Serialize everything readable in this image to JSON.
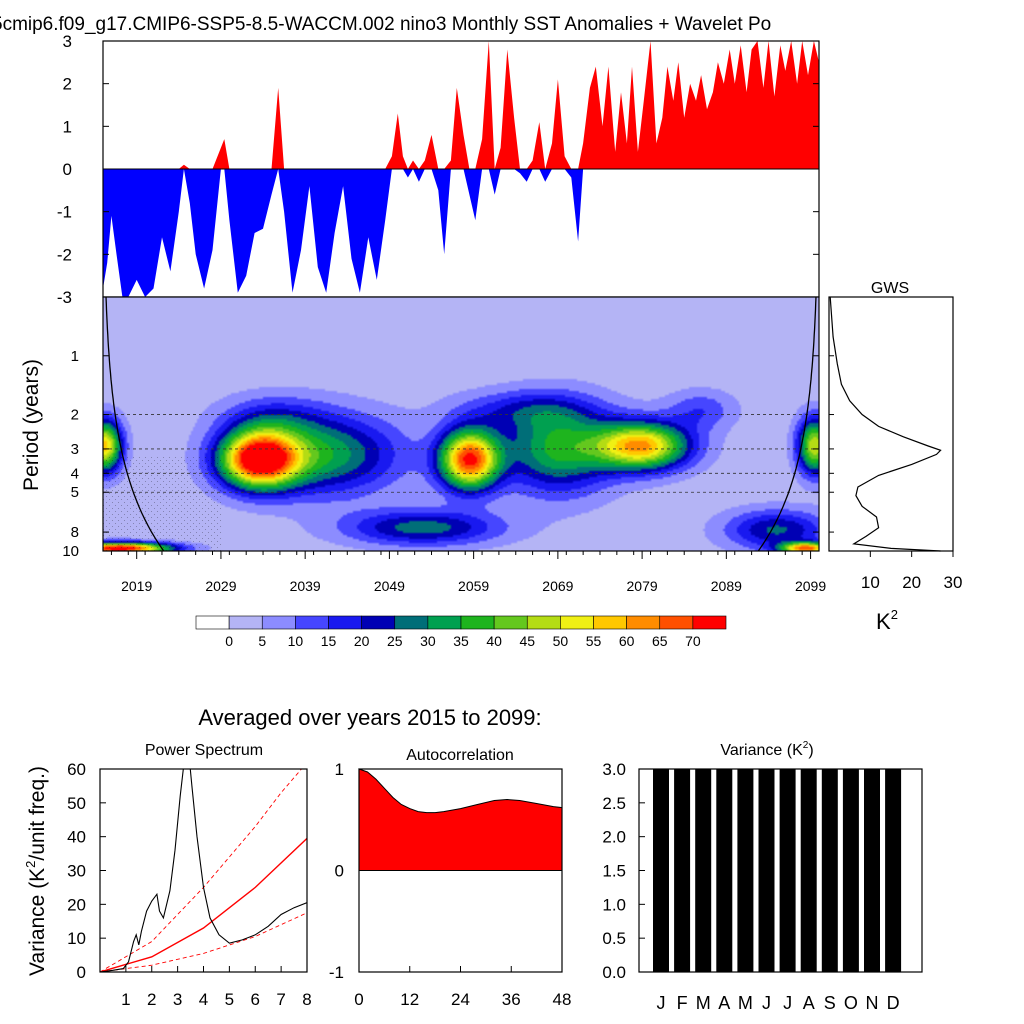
{
  "title": "5cmip6.f09_g17.CMIP6-SSP5-8.5-WACCM.002 nino3 Monthly SST Anomalies + Wavelet Po",
  "chart_data": [
    {
      "id": "anomaly",
      "type": "area",
      "title": "Monthly SST Anomalies",
      "ylim": [
        -3,
        3
      ],
      "yticks": [
        3,
        2,
        1,
        0,
        -1,
        -2,
        -3
      ],
      "xlim": [
        2015,
        2100
      ],
      "positive_color": "#ff0000",
      "negative_color": "#0000ff",
      "series": [
        {
          "x": 2015.0,
          "y": -2.8
        },
        {
          "x": 2015.5,
          "y": -2.2
        },
        {
          "x": 2016.0,
          "y": -1.1
        },
        {
          "x": 2016.6,
          "y": -2.0
        },
        {
          "x": 2017.3,
          "y": -3.0
        },
        {
          "x": 2018.0,
          "y": -3.0
        },
        {
          "x": 2019.0,
          "y": -2.6
        },
        {
          "x": 2020.0,
          "y": -3.0
        },
        {
          "x": 2021.0,
          "y": -2.8
        },
        {
          "x": 2022.0,
          "y": -1.6
        },
        {
          "x": 2023.0,
          "y": -2.4
        },
        {
          "x": 2024.0,
          "y": -1.0
        },
        {
          "x": 2024.6,
          "y": 0.1
        },
        {
          "x": 2025.3,
          "y": -0.8
        },
        {
          "x": 2026.0,
          "y": -2.0
        },
        {
          "x": 2027.0,
          "y": -2.8
        },
        {
          "x": 2028.0,
          "y": -1.9
        },
        {
          "x": 2029.0,
          "y": 0.5
        },
        {
          "x": 2029.4,
          "y": 0.7
        },
        {
          "x": 2030.0,
          "y": -1.2
        },
        {
          "x": 2031.0,
          "y": -2.9
        },
        {
          "x": 2032.0,
          "y": -2.5
        },
        {
          "x": 2033.0,
          "y": -1.5
        },
        {
          "x": 2034.0,
          "y": -1.4
        },
        {
          "x": 2035.0,
          "y": -0.6
        },
        {
          "x": 2035.8,
          "y": 1.9
        },
        {
          "x": 2036.5,
          "y": -1.0
        },
        {
          "x": 2037.5,
          "y": -2.9
        },
        {
          "x": 2038.5,
          "y": -1.9
        },
        {
          "x": 2039.5,
          "y": -0.4
        },
        {
          "x": 2040.5,
          "y": -2.3
        },
        {
          "x": 2041.5,
          "y": -2.9
        },
        {
          "x": 2042.5,
          "y": -1.5
        },
        {
          "x": 2043.5,
          "y": -0.4
        },
        {
          "x": 2044.5,
          "y": -2.1
        },
        {
          "x": 2045.5,
          "y": -2.9
        },
        {
          "x": 2046.5,
          "y": -1.6
        },
        {
          "x": 2047.5,
          "y": -2.6
        },
        {
          "x": 2048.5,
          "y": -1.2
        },
        {
          "x": 2049.3,
          "y": 0.3
        },
        {
          "x": 2050.0,
          "y": 1.3
        },
        {
          "x": 2050.6,
          "y": 0.3
        },
        {
          "x": 2051.2,
          "y": -0.2
        },
        {
          "x": 2051.8,
          "y": 0.2
        },
        {
          "x": 2052.5,
          "y": -0.3
        },
        {
          "x": 2053.2,
          "y": 0.2
        },
        {
          "x": 2054.0,
          "y": 0.8
        },
        {
          "x": 2054.8,
          "y": -0.5
        },
        {
          "x": 2055.5,
          "y": -2.0
        },
        {
          "x": 2056.3,
          "y": 0.2
        },
        {
          "x": 2057.0,
          "y": 1.9
        },
        {
          "x": 2057.8,
          "y": 0.8
        },
        {
          "x": 2058.5,
          "y": -0.6
        },
        {
          "x": 2059.2,
          "y": -1.2
        },
        {
          "x": 2060.0,
          "y": 0.7
        },
        {
          "x": 2060.8,
          "y": 3.0
        },
        {
          "x": 2061.5,
          "y": -0.6
        },
        {
          "x": 2062.2,
          "y": 0.5
        },
        {
          "x": 2063.0,
          "y": 2.8
        },
        {
          "x": 2063.8,
          "y": 1.2
        },
        {
          "x": 2064.5,
          "y": -0.1
        },
        {
          "x": 2065.3,
          "y": -0.3
        },
        {
          "x": 2066.0,
          "y": 0.2
        },
        {
          "x": 2066.8,
          "y": 1.1
        },
        {
          "x": 2067.5,
          "y": -0.3
        },
        {
          "x": 2068.3,
          "y": 0.6
        },
        {
          "x": 2069.0,
          "y": 2.1
        },
        {
          "x": 2069.8,
          "y": 0.3
        },
        {
          "x": 2070.6,
          "y": -0.2
        },
        {
          "x": 2071.4,
          "y": -1.7
        },
        {
          "x": 2072.0,
          "y": 0.6
        },
        {
          "x": 2072.8,
          "y": 1.9
        },
        {
          "x": 2073.5,
          "y": 2.4
        },
        {
          "x": 2074.3,
          "y": 1.0
        },
        {
          "x": 2075.0,
          "y": 2.4
        },
        {
          "x": 2075.8,
          "y": 0.4
        },
        {
          "x": 2076.5,
          "y": 1.8
        },
        {
          "x": 2077.2,
          "y": 0.6
        },
        {
          "x": 2077.8,
          "y": 2.4
        },
        {
          "x": 2078.5,
          "y": 0.4
        },
        {
          "x": 2079.2,
          "y": 1.6
        },
        {
          "x": 2080.0,
          "y": 3.0
        },
        {
          "x": 2080.7,
          "y": 0.6
        },
        {
          "x": 2081.4,
          "y": 1.2
        },
        {
          "x": 2082.0,
          "y": 2.4
        },
        {
          "x": 2082.7,
          "y": 1.6
        },
        {
          "x": 2083.3,
          "y": 2.5
        },
        {
          "x": 2084.0,
          "y": 1.2
        },
        {
          "x": 2084.7,
          "y": 2.0
        },
        {
          "x": 2085.4,
          "y": 1.6
        },
        {
          "x": 2086.0,
          "y": 2.2
        },
        {
          "x": 2086.7,
          "y": 1.4
        },
        {
          "x": 2087.4,
          "y": 1.8
        },
        {
          "x": 2088.0,
          "y": 2.5
        },
        {
          "x": 2088.7,
          "y": 2.0
        },
        {
          "x": 2089.4,
          "y": 2.8
        },
        {
          "x": 2090.0,
          "y": 2.0
        },
        {
          "x": 2090.7,
          "y": 2.9
        },
        {
          "x": 2091.4,
          "y": 1.8
        },
        {
          "x": 2092.0,
          "y": 2.8
        },
        {
          "x": 2092.7,
          "y": 3.0
        },
        {
          "x": 2093.4,
          "y": 1.9
        },
        {
          "x": 2094.0,
          "y": 3.0
        },
        {
          "x": 2094.7,
          "y": 1.7
        },
        {
          "x": 2095.4,
          "y": 2.9
        },
        {
          "x": 2096.0,
          "y": 2.3
        },
        {
          "x": 2096.7,
          "y": 3.0
        },
        {
          "x": 2097.4,
          "y": 2.0
        },
        {
          "x": 2098.0,
          "y": 3.0
        },
        {
          "x": 2098.7,
          "y": 2.2
        },
        {
          "x": 2099.4,
          "y": 3.0
        },
        {
          "x": 2100.0,
          "y": 2.5
        }
      ]
    },
    {
      "id": "wavelet",
      "type": "heatmap",
      "ylabel": "Period (years)",
      "yticks": [
        1,
        2,
        3,
        4,
        5,
        8,
        10
      ],
      "ylim_period": [
        0.5,
        10
      ],
      "xticks": [
        "2019",
        "2029",
        "2039",
        "2049",
        "2059",
        "2069",
        "2079",
        "2089",
        "2099"
      ],
      "xtick_years": [
        2019,
        2029,
        2039,
        2049,
        2059,
        2069,
        2079,
        2089,
        2099
      ],
      "xlim": [
        2015,
        2100
      ],
      "dashed_periods": [
        2,
        3,
        4,
        5
      ],
      "blobs": [
        {
          "year": 2033.5,
          "period": 3.4,
          "peak": 72,
          "wy": 4.5,
          "wlog": 0.14
        },
        {
          "year": 2058.5,
          "period": 3.4,
          "peak": 68,
          "wy": 3.5,
          "wlog": 0.15
        },
        {
          "year": 2079.0,
          "period": 2.9,
          "peak": 58,
          "wy": 5.5,
          "wlog": 0.12
        },
        {
          "year": 2015.2,
          "period": 2.9,
          "peak": 55,
          "wy": 2.0,
          "wlog": 0.13
        },
        {
          "year": 2099.5,
          "period": 2.9,
          "peak": 48,
          "wy": 2.0,
          "wlog": 0.14
        },
        {
          "year": 2041.0,
          "period": 3.2,
          "peak": 32,
          "wy": 9.0,
          "wlog": 0.2
        },
        {
          "year": 2069.0,
          "period": 3.0,
          "peak": 34,
          "wy": 6.5,
          "wlog": 0.22
        },
        {
          "year": 2053.0,
          "period": 7.6,
          "peak": 26,
          "wy": 9.0,
          "wlog": 0.09
        },
        {
          "year": 2095.0,
          "period": 7.8,
          "peak": 24,
          "wy": 6.0,
          "wlog": 0.1
        },
        {
          "year": 2017.0,
          "period": 9.7,
          "peak": 75,
          "wy": 6.0,
          "wlog": 0.03
        },
        {
          "year": 2098.5,
          "period": 9.7,
          "peak": 60,
          "wy": 3.0,
          "wlog": 0.03
        },
        {
          "year": 2035.0,
          "period": 2.1,
          "peak": 12,
          "wy": 6.0,
          "wlog": 0.12
        },
        {
          "year": 2065.0,
          "period": 1.9,
          "peak": 14,
          "wy": 8.0,
          "wlog": 0.1
        },
        {
          "year": 2086.0,
          "period": 1.9,
          "peak": 12,
          "wy": 4.0,
          "wlog": 0.1
        }
      ]
    },
    {
      "id": "gws",
      "type": "line",
      "title": "GWS",
      "xlabel": "K",
      "xlabel_sup": "2",
      "xticks": [
        "10",
        "20",
        "30"
      ],
      "xtick_values": [
        10,
        20,
        30
      ],
      "xlim": [
        0,
        30
      ],
      "points": [
        [
          0.3,
          0.5
        ],
        [
          1,
          0.8
        ],
        [
          2,
          1.1
        ],
        [
          3,
          1.4
        ],
        [
          5,
          1.7
        ],
        [
          8,
          2.0
        ],
        [
          12,
          2.3
        ],
        [
          18,
          2.6
        ],
        [
          24,
          2.9
        ],
        [
          27,
          3.05
        ],
        [
          26,
          3.2
        ],
        [
          20,
          3.6
        ],
        [
          12,
          4.1
        ],
        [
          7,
          4.7
        ],
        [
          6.5,
          5.2
        ],
        [
          8,
          5.9
        ],
        [
          11.5,
          6.7
        ],
        [
          12,
          7.6
        ],
        [
          9,
          8.4
        ],
        [
          6,
          9.2
        ],
        [
          15,
          9.7
        ],
        [
          27,
          10
        ]
      ]
    },
    {
      "id": "colorbar",
      "type": "heatmap",
      "levels": [
        "0",
        "5",
        "10",
        "15",
        "20",
        "25",
        "30",
        "35",
        "40",
        "45",
        "50",
        "55",
        "60",
        "65",
        "70"
      ],
      "level_values": [
        0,
        5,
        10,
        15,
        20,
        25,
        30,
        35,
        40,
        45,
        50,
        55,
        60,
        65,
        70
      ],
      "colors": [
        "#ffffff",
        "#b4b4f5",
        "#8c8cff",
        "#4646ff",
        "#1919f0",
        "#0000b4",
        "#006e78",
        "#00a050",
        "#1eb41e",
        "#64c81e",
        "#b4dc14",
        "#f0f014",
        "#ffc800",
        "#ff8c00",
        "#ff5000",
        "#ff0000"
      ]
    },
    {
      "id": "power",
      "type": "line",
      "title": "Power Spectrum",
      "ylabel": "Variance (K",
      "ylabel_sup": "2",
      "ylabel_tail": "/unit freq.)",
      "xlim": [
        0,
        8
      ],
      "ylim": [
        0,
        60
      ],
      "xticks": [
        "1",
        "2",
        "3",
        "4",
        "5",
        "6",
        "7",
        "8"
      ],
      "xtick_values": [
        1,
        2,
        3,
        4,
        5,
        6,
        7,
        8
      ],
      "yticks": [
        "0",
        "10",
        "20",
        "30",
        "40",
        "50",
        "60"
      ],
      "ytick_values": [
        0,
        10,
        20,
        30,
        40,
        50,
        60
      ],
      "spectrum": [
        [
          0,
          0
        ],
        [
          0.5,
          0.5
        ],
        [
          0.9,
          1
        ],
        [
          1.1,
          3
        ],
        [
          1.3,
          9
        ],
        [
          1.4,
          11
        ],
        [
          1.5,
          8
        ],
        [
          1.6,
          12
        ],
        [
          1.8,
          18
        ],
        [
          2.0,
          21
        ],
        [
          2.2,
          23
        ],
        [
          2.3,
          18
        ],
        [
          2.45,
          16
        ],
        [
          2.7,
          24
        ],
        [
          2.9,
          36
        ],
        [
          3.1,
          52
        ],
        [
          3.25,
          62
        ],
        [
          3.45,
          63
        ],
        [
          3.55,
          55
        ],
        [
          3.75,
          40
        ],
        [
          4.0,
          25
        ],
        [
          4.25,
          16
        ],
        [
          4.6,
          11
        ],
        [
          5.0,
          8.5
        ],
        [
          5.5,
          9.5
        ],
        [
          6.0,
          11
        ],
        [
          6.5,
          13.5
        ],
        [
          7.0,
          17
        ],
        [
          7.5,
          19
        ],
        [
          8.0,
          20.5
        ]
      ],
      "red_noise": [
        [
          0,
          0
        ],
        [
          2,
          4.5
        ],
        [
          4,
          13
        ],
        [
          6,
          25
        ],
        [
          8,
          39.5
        ]
      ],
      "upper_conf": [
        [
          0,
          0
        ],
        [
          2,
          9
        ],
        [
          4,
          25
        ],
        [
          6,
          43
        ],
        [
          7,
          53
        ],
        [
          7.9,
          61
        ]
      ],
      "lower_conf": [
        [
          0,
          0
        ],
        [
          2,
          2
        ],
        [
          4,
          5.5
        ],
        [
          6,
          10.5
        ],
        [
          8,
          17.5
        ]
      ]
    },
    {
      "id": "autocorr",
      "type": "area",
      "title": "Autocorrelation",
      "xlim": [
        0,
        48
      ],
      "ylim": [
        -1,
        1
      ],
      "xticks": [
        "0",
        "12",
        "24",
        "36",
        "48"
      ],
      "xtick_values": [
        0,
        12,
        24,
        36,
        48
      ],
      "yticks": [
        "1",
        "0",
        "-1"
      ],
      "ytick_values": [
        1,
        0,
        -1
      ],
      "points": [
        [
          0,
          1.0
        ],
        [
          2,
          0.97
        ],
        [
          4,
          0.9
        ],
        [
          6,
          0.81
        ],
        [
          8,
          0.72
        ],
        [
          10,
          0.65
        ],
        [
          12,
          0.61
        ],
        [
          14,
          0.58
        ],
        [
          16,
          0.57
        ],
        [
          18,
          0.57
        ],
        [
          20,
          0.58
        ],
        [
          24,
          0.61
        ],
        [
          28,
          0.65
        ],
        [
          32,
          0.69
        ],
        [
          35,
          0.7
        ],
        [
          38,
          0.69
        ],
        [
          42,
          0.66
        ],
        [
          46,
          0.63
        ],
        [
          48,
          0.62
        ]
      ]
    },
    {
      "id": "variance",
      "type": "bar",
      "title": "Variance (K",
      "title_sup": "2",
      "title_tail": ")",
      "ylim": [
        0,
        3
      ],
      "yticks": [
        "0.0",
        "0.5",
        "1.0",
        "1.5",
        "2.0",
        "2.5",
        "3.0"
      ],
      "ytick_values": [
        0,
        0.5,
        1.0,
        1.5,
        2.0,
        2.5,
        3.0
      ],
      "categories": [
        "J",
        "F",
        "M",
        "A",
        "M",
        "J",
        "J",
        "A",
        "S",
        "O",
        "N",
        "D"
      ],
      "values": [
        3.0,
        3.0,
        3.0,
        3.0,
        3.0,
        3.0,
        3.0,
        3.0,
        3.0,
        3.0,
        3.0,
        3.0
      ]
    }
  ],
  "panels": {
    "avg_label": "Averaged over years 2015 to 2099:"
  }
}
